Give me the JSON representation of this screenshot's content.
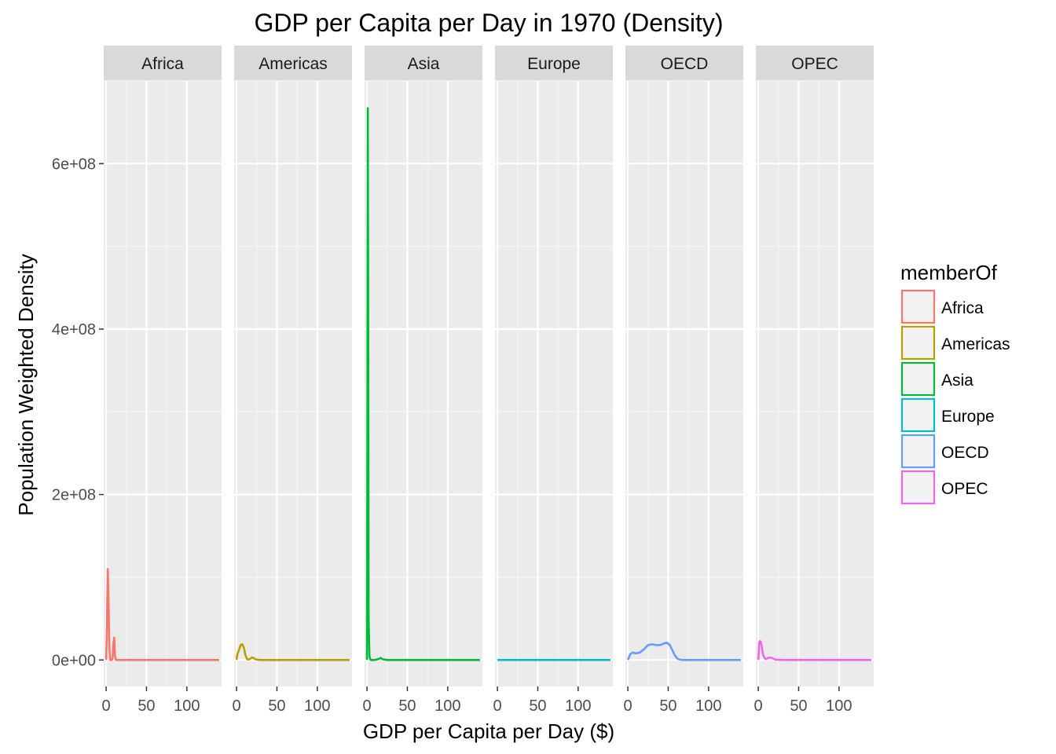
{
  "chart_data": {
    "type": "line",
    "title": "GDP per Capita per Day in 1970 (Density)",
    "xlabel": "GDP per Capita per Day ($)",
    "ylabel": "Population Weighted Density",
    "xlim": [
      -3,
      143
    ],
    "ylim": [
      -32000000,
      700000000
    ],
    "x_ticks": [
      0,
      50,
      100
    ],
    "x_tick_labels": [
      "0",
      "50",
      "100"
    ],
    "y_ticks": [
      0,
      200000000,
      400000000,
      600000000
    ],
    "y_tick_labels": [
      "0e+00",
      "2e+08",
      "4e+08",
      "6e+08"
    ],
    "grid": true,
    "legend": {
      "title": "memberOf",
      "position": "right"
    },
    "facets": [
      "Africa",
      "Americas",
      "Asia",
      "Europe",
      "OECD",
      "OPEC"
    ],
    "series": [
      {
        "name": "Africa",
        "color": "#F8766D",
        "x": [
          0,
          1,
          2,
          3,
          4,
          5,
          6,
          7,
          8,
          9,
          10,
          11,
          12,
          14,
          20,
          140
        ],
        "y": [
          0,
          40000000,
          110000000,
          70000000,
          15000000,
          0,
          0,
          0,
          2000000,
          20000000,
          27000000,
          5000000,
          0,
          0,
          0,
          0
        ]
      },
      {
        "name": "Americas",
        "color": "#B79F00",
        "x": [
          0,
          1,
          3,
          5,
          7,
          9,
          11,
          13,
          15,
          17,
          19,
          21,
          23,
          26,
          30,
          40,
          140
        ],
        "y": [
          0,
          7000000,
          12000000,
          18000000,
          19000000,
          15000000,
          6000000,
          1000000,
          500000,
          1500000,
          3000000,
          2500000,
          1000000,
          300000,
          0,
          0,
          0
        ]
      },
      {
        "name": "Asia",
        "color": "#00BA38",
        "x": [
          0,
          0.5,
          1,
          1.5,
          2,
          3,
          4,
          5,
          10,
          15,
          17,
          19,
          25,
          140
        ],
        "y": [
          0,
          300000000,
          667000000,
          450000000,
          50000000,
          5000000,
          1000000,
          0,
          0,
          1500000,
          2500000,
          1000000,
          0,
          0
        ]
      },
      {
        "name": "Europe",
        "color": "#00BFC4",
        "x": [
          0,
          50,
          100,
          140
        ],
        "y": [
          0,
          0,
          0,
          0
        ]
      },
      {
        "name": "OECD",
        "color": "#619CFF",
        "x": [
          0,
          3,
          6,
          10,
          15,
          20,
          25,
          30,
          35,
          40,
          45,
          48,
          52,
          55,
          58,
          61,
          64,
          68,
          75,
          140
        ],
        "y": [
          0,
          7000000,
          9000000,
          8000000,
          9000000,
          13000000,
          18000000,
          19000000,
          18000000,
          18000000,
          20000000,
          21000000,
          18000000,
          12000000,
          6000000,
          2000000,
          500000,
          0,
          0,
          0
        ]
      },
      {
        "name": "OPEC",
        "color": "#F564E3",
        "x": [
          0,
          0.5,
          1,
          2,
          3,
          4,
          5,
          6,
          8,
          10,
          12,
          15,
          18,
          21,
          25,
          30,
          40,
          140
        ],
        "y": [
          0,
          8000000,
          20000000,
          23000000,
          22000000,
          18000000,
          12000000,
          6000000,
          2000000,
          1000000,
          2500000,
          3000000,
          2000000,
          500000,
          300000,
          0,
          0,
          0
        ]
      }
    ]
  }
}
